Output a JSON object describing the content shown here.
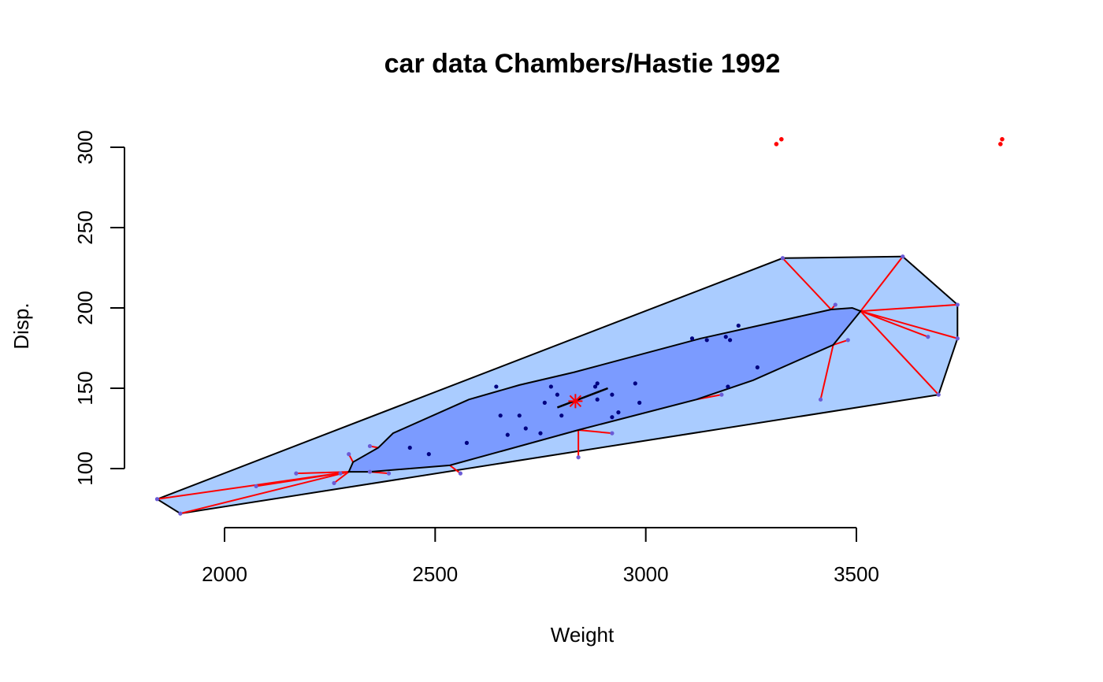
{
  "chart_data": {
    "type": "scatter",
    "title": "car data Chambers/Hastie 1992",
    "xlabel": "Weight",
    "ylabel": "Disp.",
    "xlim": [
      1840,
      3890
    ],
    "ylim": [
      65,
      313
    ],
    "xticks": [
      2000,
      2500,
      3000,
      3500
    ],
    "yticks": [
      100,
      150,
      200,
      250,
      300
    ],
    "grid": false,
    "colors": {
      "bag_fill": "#7b9bff",
      "loop_fill": "#aaccff",
      "outline": "#000000",
      "whisker": "#ff0000",
      "inner_points": "#000080",
      "outer_points": "#6b5bd6",
      "outliers": "#ff0000",
      "median": "#ff0000"
    },
    "loop_hull": [
      [
        1840,
        81
      ],
      [
        1895,
        72
      ],
      [
        3695,
        146
      ],
      [
        3740,
        181
      ],
      [
        3740,
        202
      ],
      [
        3610,
        232
      ],
      [
        3325,
        231
      ]
    ],
    "bag_hull": [
      [
        2295,
        98
      ],
      [
        2305,
        104
      ],
      [
        2365,
        113
      ],
      [
        2400,
        122
      ],
      [
        2580,
        143
      ],
      [
        2700,
        152
      ],
      [
        2830,
        160
      ],
      [
        3130,
        181
      ],
      [
        3440,
        199
      ],
      [
        3490,
        200
      ],
      [
        3510,
        198
      ],
      [
        3445,
        177
      ],
      [
        3255,
        155
      ],
      [
        3120,
        143
      ],
      [
        2840,
        124
      ],
      [
        2535,
        102
      ],
      [
        2345,
        98
      ]
    ],
    "inner_points": [
      [
        2440,
        113
      ],
      [
        2485,
        109
      ],
      [
        2575,
        116
      ],
      [
        2655,
        133
      ],
      [
        2672,
        121
      ],
      [
        2700,
        133
      ],
      [
        2715,
        125
      ],
      [
        2750,
        122
      ],
      [
        2760,
        141
      ],
      [
        2775,
        151
      ],
      [
        2790,
        146
      ],
      [
        2800,
        133
      ],
      [
        2880,
        151
      ],
      [
        2885,
        153
      ],
      [
        2885,
        143
      ],
      [
        2920,
        132
      ],
      [
        2920,
        146
      ],
      [
        2935,
        135
      ],
      [
        2975,
        153
      ],
      [
        2985,
        141
      ],
      [
        3110,
        181
      ],
      [
        3145,
        180
      ],
      [
        3190,
        182
      ],
      [
        3200,
        180
      ],
      [
        3220,
        189
      ],
      [
        3195,
        151
      ],
      [
        3265,
        163
      ],
      [
        2645,
        151
      ]
    ],
    "outer_points": [
      [
        1840,
        81
      ],
      [
        1895,
        72
      ],
      [
        2075,
        89
      ],
      [
        2170,
        97
      ],
      [
        2260,
        91
      ],
      [
        2275,
        97
      ],
      [
        2295,
        109
      ],
      [
        2345,
        114
      ],
      [
        2345,
        98
      ],
      [
        2390,
        97
      ],
      [
        2560,
        97
      ],
      [
        2840,
        107
      ],
      [
        2920,
        122
      ],
      [
        3180,
        146
      ],
      [
        3325,
        231
      ],
      [
        3415,
        143
      ],
      [
        3450,
        202
      ],
      [
        3480,
        180
      ],
      [
        3610,
        232
      ],
      [
        3670,
        182
      ],
      [
        3695,
        146
      ],
      [
        3740,
        202
      ],
      [
        3740,
        181
      ]
    ],
    "outliers": [
      [
        3310,
        302
      ],
      [
        3322,
        305
      ],
      [
        3842,
        302
      ],
      [
        3846,
        305
      ]
    ],
    "median": [
      2833,
      142
    ],
    "regression_line": [
      [
        2790,
        138
      ],
      [
        2910,
        150
      ]
    ]
  }
}
